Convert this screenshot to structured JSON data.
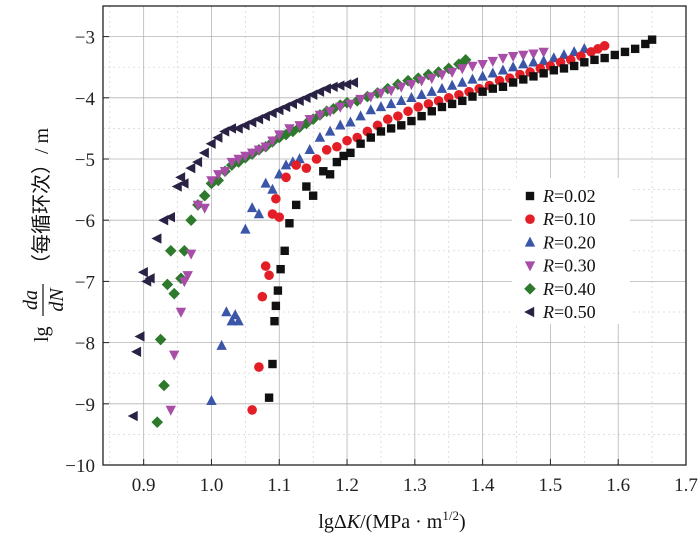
{
  "chart_data": {
    "type": "scatter",
    "title": "",
    "xlabel_prefix": "lgΔ",
    "xlabel_var": "K",
    "xlabel_unit": "/(MPa · m",
    "xlabel_sup": "1/2",
    "xlabel_close": ")",
    "ylabel_prefix": "lg",
    "ylabel_num": "da",
    "ylabel_den": "dN",
    "ylabel_unit": "（每循环次）/ m",
    "xlim": [
      0.84,
      1.7
    ],
    "ylim": [
      -10,
      -2.5
    ],
    "xticks": [
      "0.9",
      "1.0",
      "1.1",
      "1.2",
      "1.3",
      "1.4",
      "1.5",
      "1.6",
      "1.7"
    ],
    "yticks": [
      "−3",
      "−4",
      "−5",
      "−6",
      "−7",
      "−8",
      "−9",
      "−10"
    ],
    "legend_position": "right-middle",
    "series": [
      {
        "name": "R=0.02",
        "label_var": "R",
        "label_val": "=0.02",
        "color": "#111111",
        "marker": "square",
        "x": [
          1.085,
          1.09,
          1.093,
          1.095,
          1.098,
          1.102,
          1.108,
          1.115,
          1.125,
          1.14,
          1.15,
          1.165,
          1.175,
          1.185,
          1.195,
          1.205,
          1.22,
          1.235,
          1.25,
          1.265,
          1.28,
          1.295,
          1.31,
          1.325,
          1.34,
          1.355,
          1.37,
          1.385,
          1.4,
          1.415,
          1.43,
          1.445,
          1.46,
          1.475,
          1.49,
          1.505,
          1.52,
          1.535,
          1.55,
          1.565,
          1.58,
          1.595,
          1.61,
          1.625,
          1.64,
          1.65
        ],
        "y": [
          -8.9,
          -8.35,
          -7.65,
          -7.4,
          -7.15,
          -6.8,
          -6.5,
          -6.05,
          -5.75,
          -5.45,
          -5.6,
          -5.2,
          -5.25,
          -5.05,
          -4.95,
          -4.9,
          -4.75,
          -4.65,
          -4.55,
          -4.5,
          -4.45,
          -4.38,
          -4.3,
          -4.22,
          -4.15,
          -4.1,
          -4.05,
          -3.98,
          -3.9,
          -3.85,
          -3.82,
          -3.75,
          -3.7,
          -3.65,
          -3.6,
          -3.55,
          -3.52,
          -3.48,
          -3.42,
          -3.38,
          -3.35,
          -3.3,
          -3.25,
          -3.2,
          -3.12,
          -3.05
        ]
      },
      {
        "name": "R=0.10",
        "label_var": "R",
        "label_val": "=0.10",
        "color": "#e41e26",
        "marker": "circle",
        "x": [
          1.06,
          1.07,
          1.075,
          1.08,
          1.085,
          1.09,
          1.095,
          1.1,
          1.11,
          1.125,
          1.14,
          1.155,
          1.17,
          1.185,
          1.2,
          1.215,
          1.23,
          1.245,
          1.26,
          1.275,
          1.29,
          1.305,
          1.32,
          1.335,
          1.35,
          1.365,
          1.38,
          1.395,
          1.41,
          1.425,
          1.44,
          1.455,
          1.47,
          1.485,
          1.5,
          1.515,
          1.53,
          1.545,
          1.56,
          1.57,
          1.58
        ],
        "y": [
          -9.1,
          -8.4,
          -7.25,
          -6.75,
          -6.9,
          -5.9,
          -5.65,
          -5.95,
          -5.3,
          -5.1,
          -5.15,
          -5.0,
          -4.85,
          -4.8,
          -4.7,
          -4.65,
          -4.55,
          -4.45,
          -4.35,
          -4.3,
          -4.22,
          -4.15,
          -4.1,
          -4.05,
          -4.0,
          -3.95,
          -3.9,
          -3.85,
          -3.8,
          -3.72,
          -3.68,
          -3.62,
          -3.58,
          -3.52,
          -3.48,
          -3.42,
          -3.38,
          -3.32,
          -3.25,
          -3.2,
          -3.15
        ]
      },
      {
        "name": "R=0.20",
        "label_var": "R",
        "label_val": "=0.20",
        "color": "#3b55a8",
        "marker": "triangle-up",
        "x": [
          1.0,
          1.015,
          1.022,
          1.03,
          1.035,
          1.04,
          1.05,
          1.06,
          1.07,
          1.08,
          1.09,
          1.1,
          1.11,
          1.12,
          1.13,
          1.145,
          1.16,
          1.175,
          1.19,
          1.205,
          1.22,
          1.235,
          1.25,
          1.265,
          1.28,
          1.295,
          1.31,
          1.325,
          1.34,
          1.355,
          1.37,
          1.385,
          1.4,
          1.415,
          1.43,
          1.445,
          1.46,
          1.475,
          1.49,
          1.505,
          1.52,
          1.535,
          1.55
        ],
        "y": [
          -8.95,
          -8.05,
          -7.5,
          -7.65,
          -7.55,
          -7.65,
          -6.15,
          -5.8,
          -5.9,
          -5.4,
          -5.5,
          -5.25,
          -5.1,
          -5.05,
          -5.0,
          -4.85,
          -4.65,
          -4.55,
          -4.45,
          -4.4,
          -4.3,
          -4.2,
          -4.15,
          -4.1,
          -4.05,
          -4.0,
          -3.95,
          -3.9,
          -3.85,
          -3.8,
          -3.75,
          -3.7,
          -3.65,
          -3.6,
          -3.55,
          -3.5,
          -3.45,
          -3.42,
          -3.4,
          -3.35,
          -3.3,
          -3.25,
          -3.2
        ]
      },
      {
        "name": "R=0.30",
        "label_var": "R",
        "label_val": "=0.30",
        "color": "#a84ea8",
        "marker": "triangle-down",
        "x": [
          0.94,
          0.945,
          0.955,
          0.96,
          0.965,
          0.97,
          0.98,
          0.99,
          1.0,
          1.01,
          1.02,
          1.03,
          1.04,
          1.05,
          1.06,
          1.07,
          1.08,
          1.09,
          1.1,
          1.115,
          1.13,
          1.145,
          1.16,
          1.175,
          1.19,
          1.205,
          1.22,
          1.235,
          1.25,
          1.265,
          1.28,
          1.295,
          1.31,
          1.325,
          1.34,
          1.355,
          1.37,
          1.385,
          1.4,
          1.415,
          1.43,
          1.445,
          1.46,
          1.475,
          1.49
        ],
        "y": [
          -9.1,
          -8.2,
          -7.5,
          -7.0,
          -6.9,
          -6.55,
          -5.75,
          -5.8,
          -5.35,
          -5.25,
          -5.2,
          -5.05,
          -5.0,
          -4.95,
          -4.9,
          -4.85,
          -4.8,
          -4.7,
          -4.6,
          -4.5,
          -4.45,
          -4.35,
          -4.28,
          -4.22,
          -4.15,
          -4.1,
          -4.02,
          -3.98,
          -3.92,
          -3.88,
          -3.82,
          -3.78,
          -3.72,
          -3.68,
          -3.62,
          -3.58,
          -3.52,
          -3.48,
          -3.45,
          -3.4,
          -3.35,
          -3.32,
          -3.3,
          -3.28,
          -3.25
        ]
      },
      {
        "name": "R=0.40",
        "label_var": "R",
        "label_val": "=0.40",
        "color": "#2d7a2d",
        "marker": "diamond",
        "x": [
          0.92,
          0.925,
          0.93,
          0.935,
          0.94,
          0.945,
          0.955,
          0.96,
          0.97,
          0.98,
          0.99,
          1.0,
          1.01,
          1.02,
          1.03,
          1.04,
          1.05,
          1.06,
          1.07,
          1.08,
          1.09,
          1.1,
          1.11,
          1.12,
          1.13,
          1.14,
          1.15,
          1.16,
          1.17,
          1.18,
          1.19,
          1.2,
          1.215,
          1.23,
          1.245,
          1.26,
          1.275,
          1.29,
          1.305,
          1.32,
          1.335,
          1.35,
          1.365,
          1.375
        ],
        "y": [
          -9.3,
          -7.95,
          -8.7,
          -7.05,
          -6.5,
          -7.2,
          -6.95,
          -6.5,
          -6.0,
          -5.75,
          -5.6,
          -5.4,
          -5.35,
          -5.2,
          -5.1,
          -5.05,
          -4.98,
          -4.92,
          -4.85,
          -4.8,
          -4.72,
          -4.65,
          -4.6,
          -4.55,
          -4.48,
          -4.42,
          -4.35,
          -4.28,
          -4.22,
          -4.18,
          -4.12,
          -4.08,
          -4.05,
          -3.98,
          -3.92,
          -3.85,
          -3.78,
          -3.72,
          -3.68,
          -3.62,
          -3.58,
          -3.52,
          -3.45,
          -3.38
        ]
      },
      {
        "name": "R=0.50",
        "label_var": "R",
        "label_val": "=0.50",
        "color": "#2a2244",
        "marker": "triangle-left",
        "x": [
          0.885,
          0.89,
          0.895,
          0.9,
          0.905,
          0.91,
          0.92,
          0.93,
          0.94,
          0.95,
          0.955,
          0.96,
          0.97,
          0.98,
          0.99,
          1.0,
          1.01,
          1.02,
          1.03,
          1.04,
          1.05,
          1.06,
          1.07,
          1.08,
          1.09,
          1.1,
          1.11,
          1.12,
          1.13,
          1.14,
          1.15,
          1.16,
          1.17,
          1.18,
          1.19,
          1.2,
          1.21
        ],
        "y": [
          -9.2,
          -8.15,
          -7.9,
          -6.85,
          -7.0,
          -6.95,
          -6.3,
          -6.0,
          -5.95,
          -5.45,
          -5.3,
          -5.4,
          -5.15,
          -5.05,
          -4.9,
          -4.75,
          -4.65,
          -4.55,
          -4.5,
          -4.5,
          -4.45,
          -4.4,
          -4.35,
          -4.3,
          -4.25,
          -4.2,
          -4.15,
          -4.1,
          -4.05,
          -4.0,
          -3.95,
          -3.9,
          -3.85,
          -3.82,
          -3.8,
          -3.78,
          -3.75
        ]
      }
    ]
  }
}
